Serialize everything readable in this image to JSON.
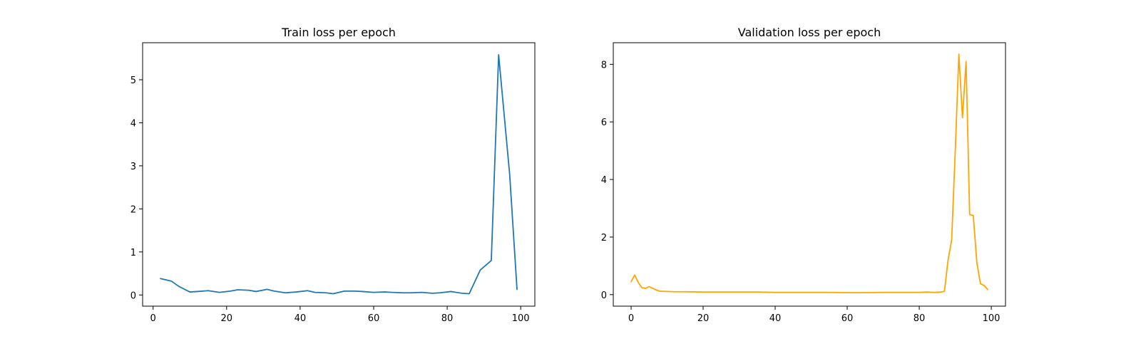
{
  "chart_data": [
    {
      "type": "line",
      "title": "Train loss per epoch",
      "xlabel": "",
      "ylabel": "",
      "xlim": [
        -2.85,
        103.85
      ],
      "ylim": [
        -0.26,
        5.86
      ],
      "xticks": [
        0,
        20,
        40,
        60,
        80,
        100
      ],
      "yticks": [
        0,
        1,
        2,
        3,
        4,
        5
      ],
      "grid": false,
      "color": "#1f77b4",
      "series": [
        {
          "x": [
            2,
            5,
            7,
            10,
            12,
            15,
            18,
            21,
            23,
            26,
            28,
            31,
            33,
            36,
            39,
            42,
            44,
            47,
            49,
            52,
            55,
            57,
            60,
            63,
            65,
            68,
            70,
            73,
            76,
            78,
            81,
            84,
            86,
            89,
            92,
            94,
            97,
            99
          ],
          "y": [
            0.38,
            0.32,
            0.2,
            0.07,
            0.08,
            0.1,
            0.06,
            0.09,
            0.12,
            0.11,
            0.08,
            0.13,
            0.09,
            0.05,
            0.07,
            0.1,
            0.06,
            0.05,
            0.03,
            0.09,
            0.09,
            0.08,
            0.06,
            0.07,
            0.06,
            0.05,
            0.05,
            0.06,
            0.04,
            0.05,
            0.08,
            0.04,
            0.03,
            0.58,
            0.8,
            5.58,
            2.8,
            0.13
          ]
        }
      ]
    },
    {
      "type": "line",
      "title": "Validation loss per epoch",
      "xlabel": "",
      "ylabel": "",
      "xlim": [
        -4.95,
        103.95
      ],
      "ylim": [
        -0.4,
        8.75
      ],
      "xticks": [
        0,
        20,
        40,
        60,
        80,
        100
      ],
      "yticks": [
        0,
        2,
        4,
        6,
        8
      ],
      "grid": false,
      "color": "#ffa500",
      "series": [
        {
          "x": [
            0,
            1,
            2,
            3,
            4,
            5,
            6,
            7,
            8,
            10,
            12,
            15,
            20,
            25,
            30,
            35,
            40,
            45,
            50,
            55,
            60,
            65,
            70,
            75,
            80,
            82,
            84,
            86,
            87,
            88,
            89,
            90,
            91,
            92,
            93,
            94,
            95,
            96,
            97,
            98,
            99
          ],
          "y": [
            0.45,
            0.68,
            0.42,
            0.24,
            0.22,
            0.28,
            0.22,
            0.16,
            0.12,
            0.11,
            0.1,
            0.1,
            0.09,
            0.09,
            0.09,
            0.09,
            0.08,
            0.08,
            0.08,
            0.08,
            0.07,
            0.07,
            0.08,
            0.08,
            0.08,
            0.09,
            0.08,
            0.09,
            0.12,
            1.2,
            1.9,
            5.0,
            8.35,
            6.15,
            8.1,
            2.78,
            2.75,
            1.1,
            0.38,
            0.32,
            0.18
          ]
        }
      ]
    }
  ]
}
